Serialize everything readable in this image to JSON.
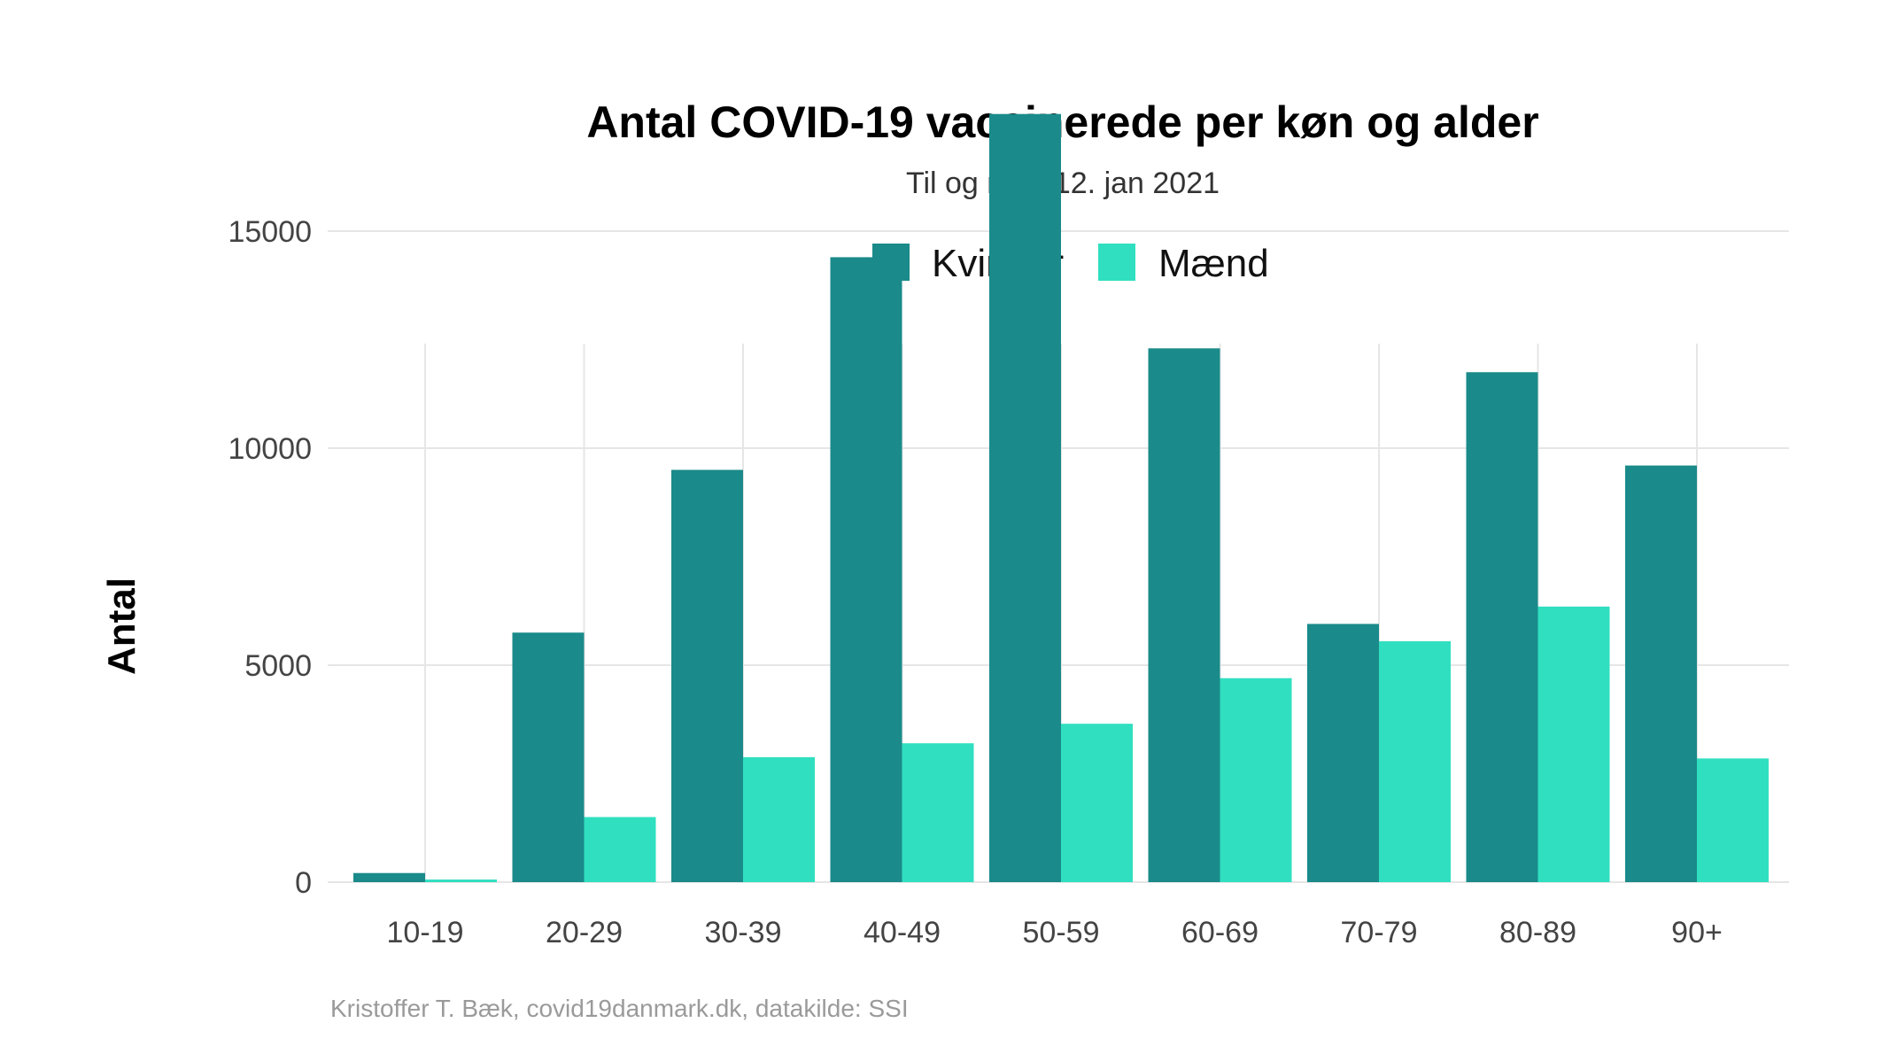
{
  "chart_data": {
    "type": "bar",
    "title": "Antal COVID-19 vaccinerede per køn og alder",
    "subtitle": "Til og med 12. jan 2021",
    "ylabel": "Antal",
    "xlabel": "",
    "caption": "Kristoffer T. Bæk, covid19danmark.dk, datakilde: SSI",
    "categories": [
      "10-19",
      "20-29",
      "30-39",
      "40-49",
      "50-59",
      "60-69",
      "70-79",
      "80-89",
      "90+"
    ],
    "series": [
      {
        "name": "Kvinder",
        "color": "#1a8a8a",
        "values": [
          210,
          5750,
          9500,
          14400,
          17700,
          12300,
          5950,
          11750,
          9600
        ]
      },
      {
        "name": "Mænd",
        "color": "#30dfc0",
        "values": [
          60,
          1500,
          2880,
          3200,
          3650,
          4700,
          5550,
          6350,
          2850
        ]
      }
    ],
    "yticks": [
      0,
      5000,
      10000,
      15000
    ],
    "ylim": [
      0,
      18600
    ],
    "grid": true,
    "legend_position": "top"
  }
}
